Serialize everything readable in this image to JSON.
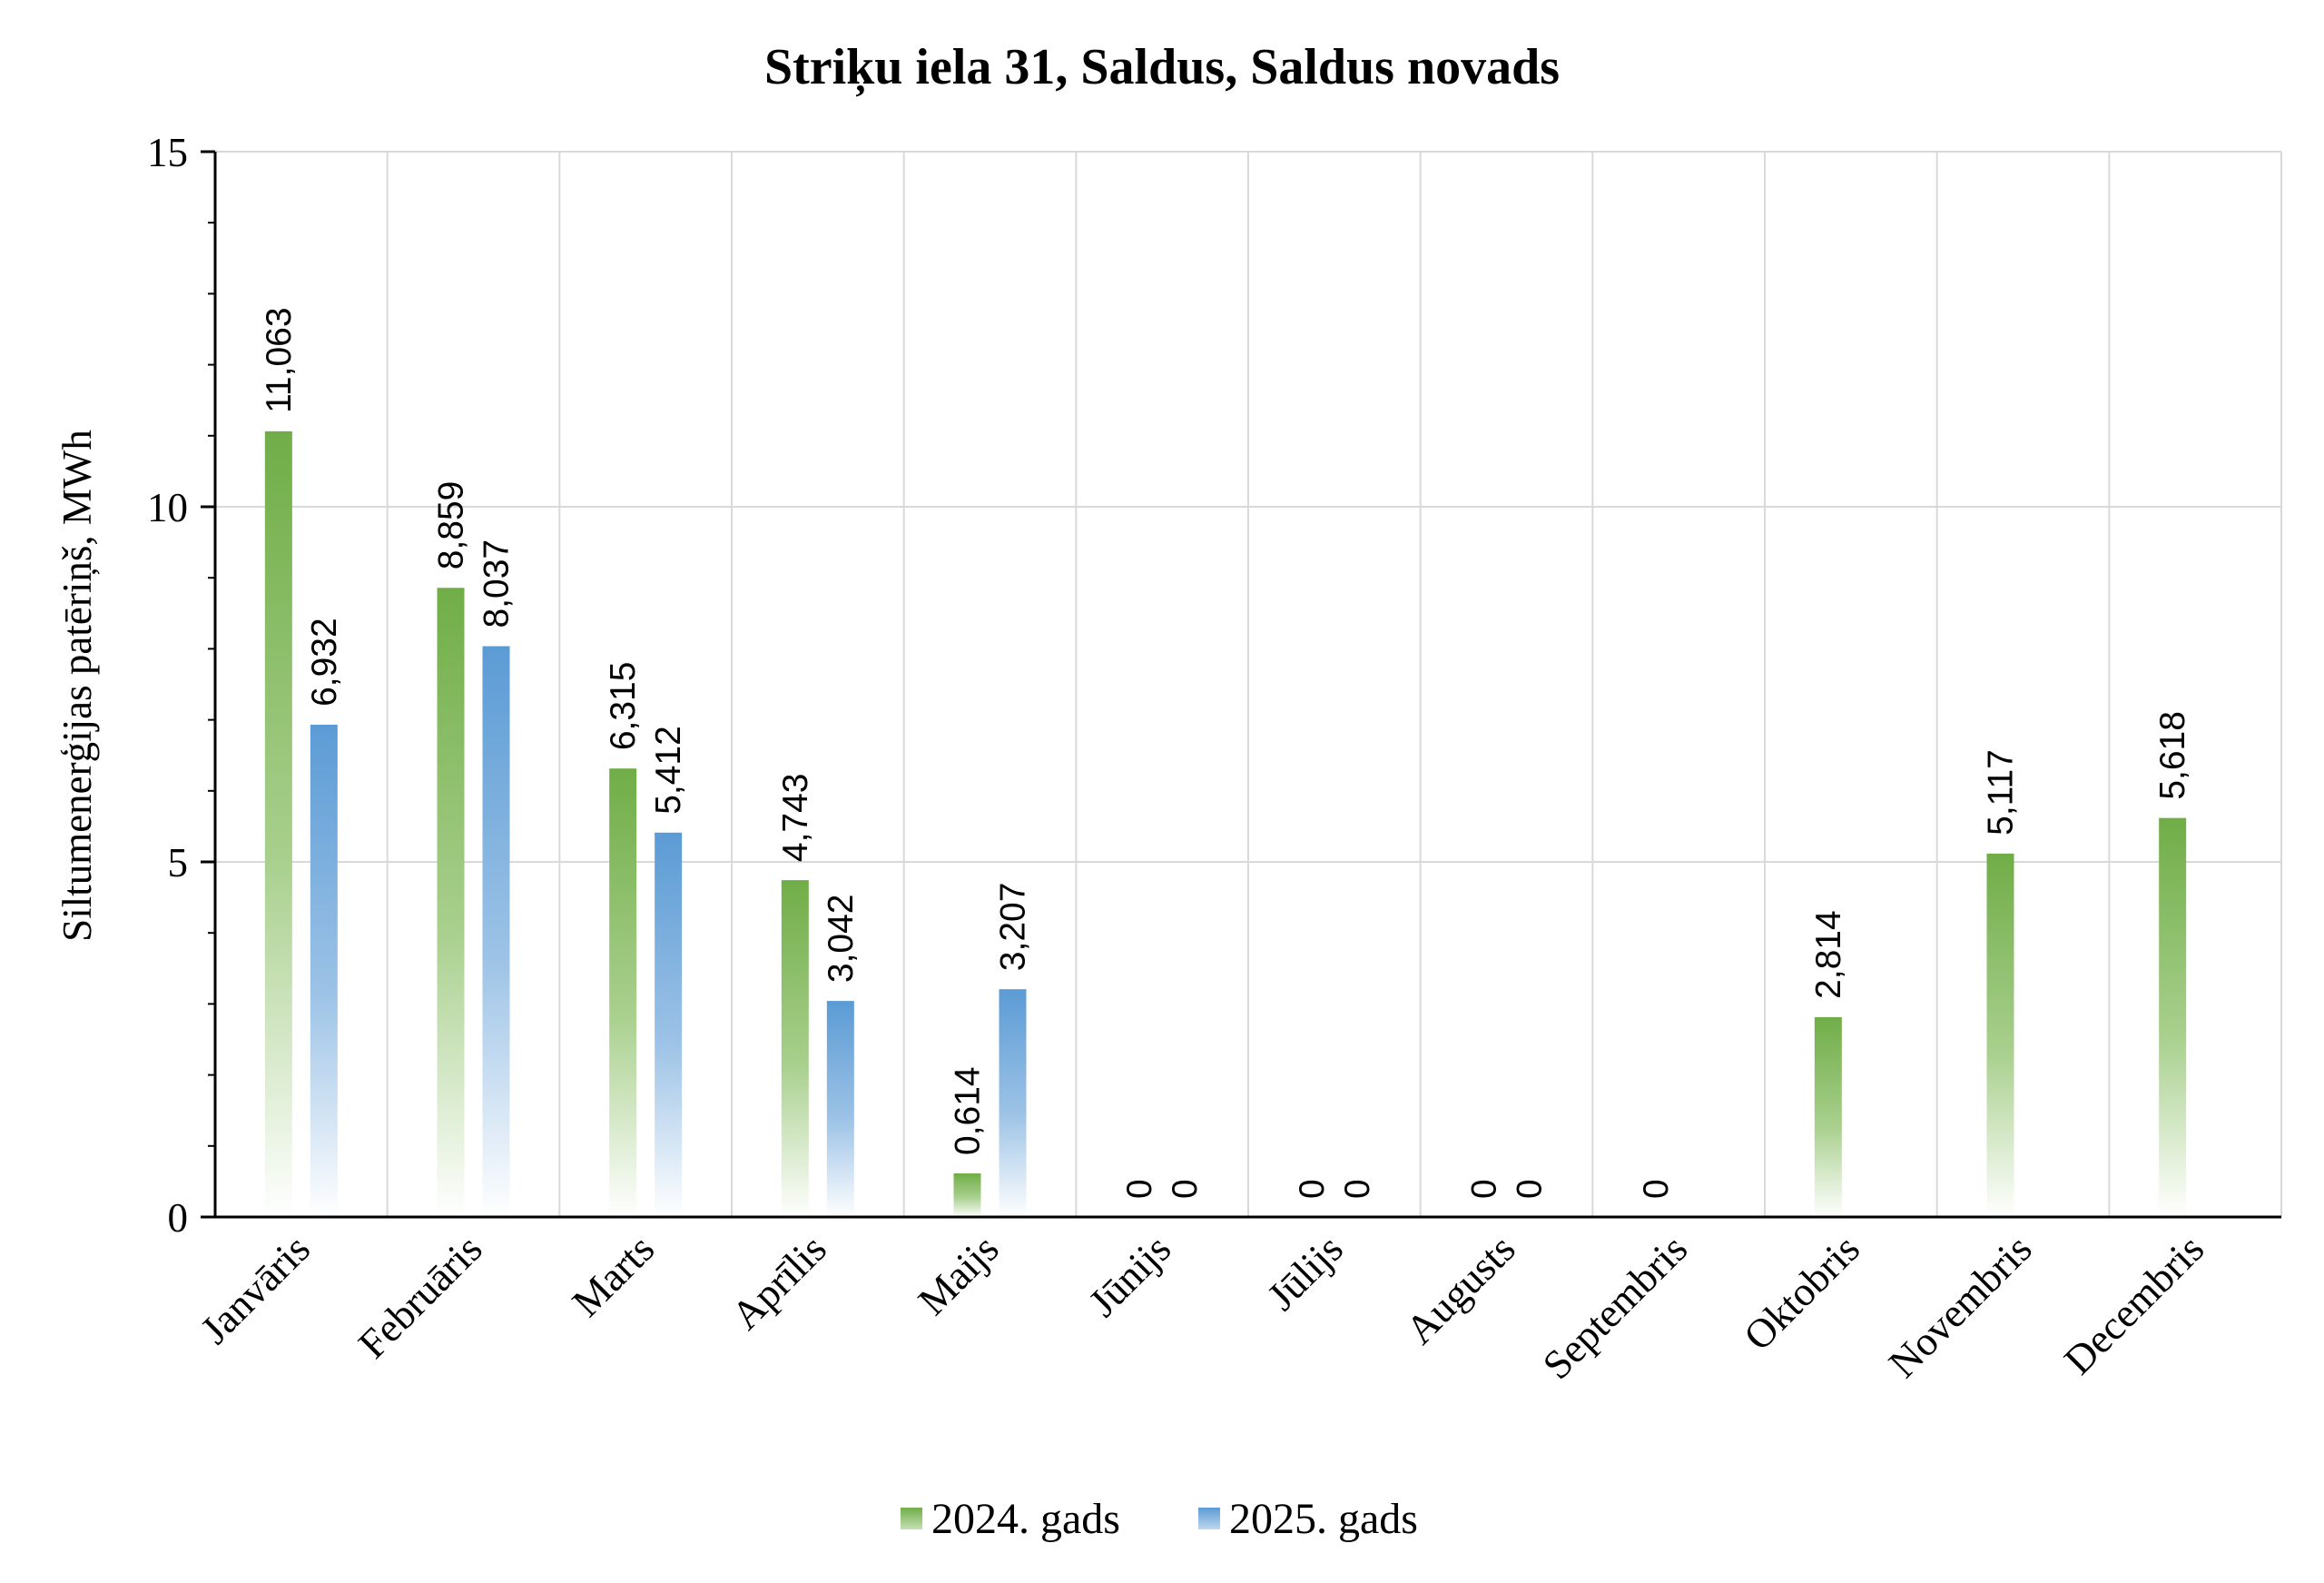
{
  "chart_data": {
    "type": "bar",
    "title": "Striķu iela 31, Saldus, Saldus novads",
    "ylabel": "Siltumenerģijas patēriņš, MWh",
    "xlabel": "",
    "ylim": [
      0,
      15
    ],
    "yticks": [
      0,
      5,
      10,
      15
    ],
    "grid": true,
    "legend_position": "bottom",
    "categories": [
      "Janvāris",
      "Februāris",
      "Marts",
      "Aprīlis",
      "Maijs",
      "Jūnijs",
      "Jūlijs",
      "Augusts",
      "Septembris",
      "Oktobris",
      "Novembris",
      "Decembris"
    ],
    "series": [
      {
        "name": "2024. gads",
        "color": "#70ad47",
        "values": [
          11.063,
          8.859,
          6.315,
          4.743,
          0.614,
          0,
          0,
          0,
          0,
          2.814,
          5.117,
          5.618
        ],
        "labels": [
          "11,063",
          "8,859",
          "6,315",
          "4,743",
          "0,614",
          "0",
          "0",
          "0",
          "0",
          "2,814",
          "5,117",
          "5,618"
        ]
      },
      {
        "name": "2025. gads",
        "color": "#5b9bd5",
        "values": [
          6.932,
          8.037,
          5.412,
          3.042,
          3.207,
          0,
          0,
          0,
          null,
          null,
          null,
          null
        ],
        "labels": [
          "6,932",
          "8,037",
          "5,412",
          "3,042",
          "3,207",
          "0",
          "0",
          "0",
          null,
          null,
          null,
          null
        ]
      }
    ]
  }
}
